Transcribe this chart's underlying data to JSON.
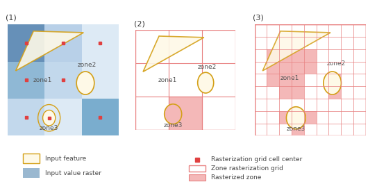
{
  "fig_width": 5.43,
  "fig_height": 2.62,
  "dpi": 100,
  "bg_color": "#ffffff",
  "panel_labels": [
    "(1)",
    "(2)",
    "(3)"
  ],
  "triangle_color_fill": "#fef9e7",
  "triangle_color_edge": "#d4a017",
  "ellipse_color_fill": "#fef9e7",
  "ellipse_color_edge": "#d4a017",
  "rasterized_color": "#f4b8b8",
  "grid_line_color_p2": "#e88080",
  "grid_line_color_p3": "#e88080",
  "grid_colors_p1": [
    [
      "#7a9ec0",
      "#b8d0e8",
      "#c8ddf0"
    ],
    [
      "#9ab8d0",
      "#c0d8ec",
      "#dce9f5"
    ],
    [
      "#c8ddf0",
      "#dce9f5",
      "#5a82aa"
    ]
  ],
  "zone_label_color": "#555555",
  "zone_label_fontsize": 6.5,
  "panel_label_fontsize": 8
}
